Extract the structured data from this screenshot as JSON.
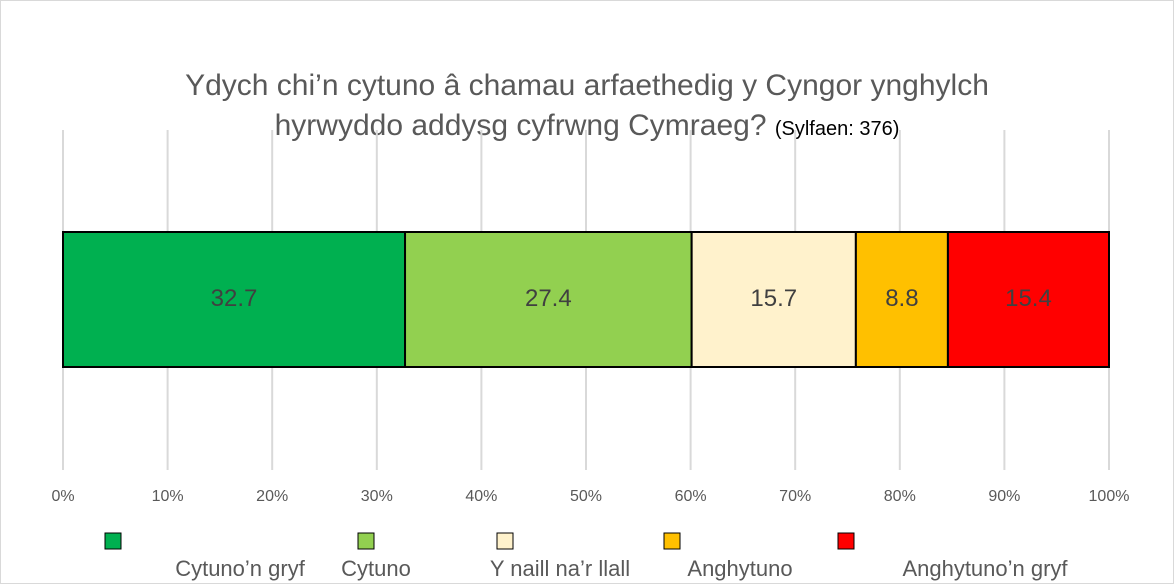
{
  "chart_data": {
    "type": "stacked_bar",
    "title": "Ydych chi’n cytuno â chamau arfaethedig y Cyngor ynghylch hyrwyddo addysg cyfrwng Cymraeg?",
    "subtitle": "(Sylfaen: 376)",
    "orientation": "horizontal",
    "series": [
      {
        "name": "Cytuno’n gryf",
        "color": "#00b050",
        "values": [
          32.7
        ]
      },
      {
        "name": "Cytuno",
        "color": "#92d050",
        "values": [
          27.4
        ]
      },
      {
        "name": "Y naill na’r llall",
        "color": "#fff2cc",
        "values": [
          15.7
        ]
      },
      {
        "name": "Anghytuno",
        "color": "#ffc000",
        "values": [
          8.8
        ]
      },
      {
        "name": "Anghytuno’n gryf",
        "color": "#ff0000",
        "values": [
          15.4
        ]
      }
    ],
    "xlim": [
      0,
      100
    ],
    "xticks": [
      {
        "value": 0,
        "label": "0%"
      },
      {
        "value": 10,
        "label": "10%"
      },
      {
        "value": 20,
        "label": "20%"
      },
      {
        "value": 30,
        "label": "30%"
      },
      {
        "value": 40,
        "label": "40%"
      },
      {
        "value": 50,
        "label": "50%"
      },
      {
        "value": 60,
        "label": "60%"
      },
      {
        "value": 70,
        "label": "70%"
      },
      {
        "value": 80,
        "label": "80%"
      },
      {
        "value": 90,
        "label": "90%"
      },
      {
        "value": 100,
        "label": "100%"
      }
    ],
    "grid": true,
    "legend": "bottom"
  }
}
